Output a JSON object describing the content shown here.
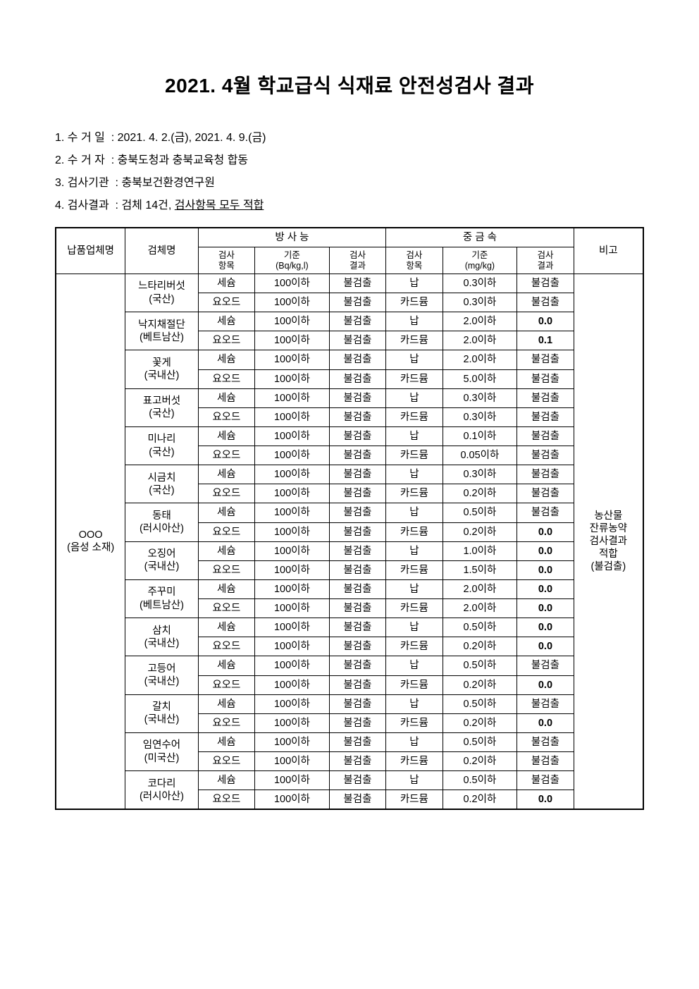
{
  "title": "2021. 4월 학교급식 식재료 안전성검사 결과",
  "meta": {
    "line1": "1. 수 거 일  : 2021. 4. 2.(금), 2021. 4. 9.(금)",
    "line2": "2. 수 거 자  : 충북도청과 충북교육청 합동",
    "line3": "3. 검사기관  : 충북보건환경연구원",
    "line4_prefix": "4. 검사결과  : 검체 14건, ",
    "line4_underlined": "검사항목 모두 적합"
  },
  "header": {
    "supplier": "납품업체명",
    "sample": "검체명",
    "radiation": "방 사 능",
    "metal": "중 금 속",
    "note": "비고",
    "rad_item": "검사\n항목",
    "rad_std": "기준\n(Bq/kg,l)",
    "rad_res": "검사\n결과",
    "met_item": "검사\n항목",
    "met_std": "기준\n(mg/kg)",
    "met_res": "검사\n결과"
  },
  "supplier": "OOO\n(음성 소재)",
  "note": "농산물\n잔류농약\n검사결과\n적합\n(불검출)",
  "rad_item_cesium": "세슘",
  "rad_item_iodine": "요오드",
  "rad_std_value": "100이하",
  "rad_res_value": "불검출",
  "met_item_pb": "납",
  "met_item_cd": "카드뮴",
  "samples": [
    {
      "name": "느타리버섯\n(국산)",
      "pb_std": "0.3이하",
      "pb_res": "불검출",
      "cd_std": "0.3이하",
      "cd_res": "불검출"
    },
    {
      "name": "낙지채절단\n(베트남산)",
      "pb_std": "2.0이하",
      "pb_res": "0.0",
      "cd_std": "2.0이하",
      "cd_res": "0.1"
    },
    {
      "name": "꽃게\n(국내산)",
      "pb_std": "2.0이하",
      "pb_res": "불검출",
      "cd_std": "5.0이하",
      "cd_res": "불검출"
    },
    {
      "name": "표고버섯\n(국산)",
      "pb_std": "0.3이하",
      "pb_res": "불검출",
      "cd_std": "0.3이하",
      "cd_res": "불검출"
    },
    {
      "name": "미나리\n(국산)",
      "pb_std": "0.1이하",
      "pb_res": "불검출",
      "cd_std": "0.05이하",
      "cd_res": "불검출"
    },
    {
      "name": "시금치\n(국산)",
      "pb_std": "0.3이하",
      "pb_res": "불검출",
      "cd_std": "0.2이하",
      "cd_res": "불검출"
    },
    {
      "name": "동태\n(러시아산)",
      "pb_std": "0.5이하",
      "pb_res": "불검출",
      "cd_std": "0.2이하",
      "cd_res": "0.0"
    },
    {
      "name": "오징어\n(국내산)",
      "pb_std": "1.0이하",
      "pb_res": "0.0",
      "cd_std": "1.5이하",
      "cd_res": "0.0"
    },
    {
      "name": "주꾸미\n(베트남산)",
      "pb_std": "2.0이하",
      "pb_res": "0.0",
      "cd_std": "2.0이하",
      "cd_res": "0.0"
    },
    {
      "name": "삼치\n(국내산)",
      "pb_std": "0.5이하",
      "pb_res": "0.0",
      "cd_std": "0.2이하",
      "cd_res": "0.0"
    },
    {
      "name": "고등어\n(국내산)",
      "pb_std": "0.5이하",
      "pb_res": "불검출",
      "cd_std": "0.2이하",
      "cd_res": "0.0"
    },
    {
      "name": "갈치\n(국내산)",
      "pb_std": "0.5이하",
      "pb_res": "불검출",
      "cd_std": "0.2이하",
      "cd_res": "0.0"
    },
    {
      "name": "임연수어\n(미국산)",
      "pb_std": "0.5이하",
      "pb_res": "불검출",
      "cd_std": "0.2이하",
      "cd_res": "불검출"
    },
    {
      "name": "코다리\n(러시아산)",
      "pb_std": "0.5이하",
      "pb_res": "불검출",
      "cd_std": "0.2이하",
      "cd_res": "0.0"
    }
  ]
}
